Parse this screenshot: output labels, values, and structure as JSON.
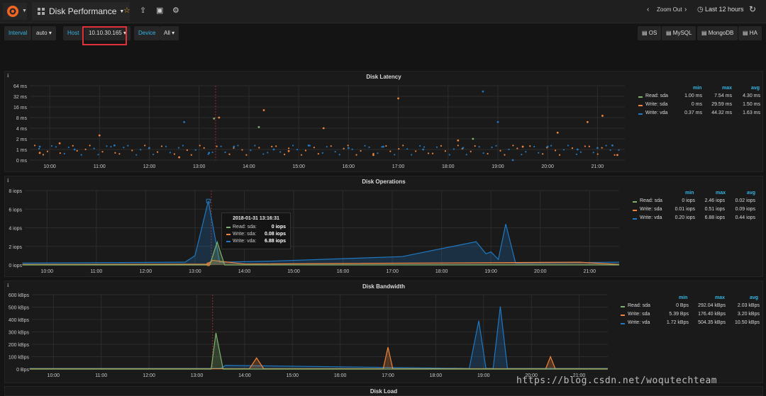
{
  "toolbar": {
    "dashboard_title": "Disk Performance",
    "zoom_out_label": "Zoom Out",
    "time_range_label": "Last 12 hours"
  },
  "variables": {
    "interval_label": "Interval",
    "interval_value": "auto",
    "host_label": "Host",
    "host_value": "10.10.30.165",
    "device_label": "Device",
    "device_value": "All"
  },
  "links": [
    "OS",
    "MySQL",
    "MongoDB",
    "HA"
  ],
  "panels": {
    "latency": {
      "title": "Disk Latency",
      "legend_headers": [
        "min",
        "max",
        "avg"
      ],
      "legend": [
        {
          "name": "Read: sda",
          "min": "1.00 ms",
          "max": "7.54 ms",
          "avg": "4.30 ms",
          "color": "#7eb26d"
        },
        {
          "name": "Write: sda",
          "min": "0 ms",
          "max": "29.59 ms",
          "avg": "1.50 ms",
          "color": "#ef843c"
        },
        {
          "name": "Write: vda",
          "min": "0.37 ms",
          "max": "44.32 ms",
          "avg": "1.63 ms",
          "color": "#1f78c1"
        }
      ]
    },
    "operations": {
      "title": "Disk Operations",
      "legend_headers": [
        "min",
        "max",
        "avg"
      ],
      "legend": [
        {
          "name": "Read: sda",
          "min": "0 iops",
          "max": "2.46 iops",
          "avg": "0.02 iops",
          "color": "#7eb26d"
        },
        {
          "name": "Write: sda",
          "min": "0.01 iops",
          "max": "0.51 iops",
          "avg": "0.09 iops",
          "color": "#ef843c"
        },
        {
          "name": "Write: vda",
          "min": "0.20 iops",
          "max": "6.88 iops",
          "avg": "0.44 iops",
          "color": "#1f78c1"
        }
      ],
      "tooltip": {
        "time": "2018-01-31 13:16:31",
        "rows": [
          {
            "name": "Read: sda:",
            "value": "0 iops",
            "color": "#7eb26d"
          },
          {
            "name": "Write: sda:",
            "value": "0.08 iops",
            "color": "#ef843c"
          },
          {
            "name": "Write: vda:",
            "value": "6.88 iops",
            "color": "#1f78c1"
          }
        ]
      }
    },
    "bandwidth": {
      "title": "Disk Bandwidth",
      "legend_headers": [
        "min",
        "max",
        "avg"
      ],
      "legend": [
        {
          "name": "Read: sda",
          "min": "0 Bps",
          "max": "292.04 kBps",
          "avg": "2.03 kBps",
          "color": "#7eb26d"
        },
        {
          "name": "Write: sda",
          "min": "5.39 Bps",
          "max": "176.40 kBps",
          "avg": "3.20 kBps",
          "color": "#ef843c"
        },
        {
          "name": "Write: vda",
          "min": "1.72 kBps",
          "max": "504.35 kBps",
          "avg": "10.50 kBps",
          "color": "#1f78c1"
        }
      ]
    },
    "load": {
      "title": "Disk Load"
    }
  },
  "watermark": "https://blog.csdn.net/woqutechteam",
  "chart_data": [
    {
      "type": "scatter",
      "title": "Disk Latency",
      "x_ticks": [
        "10:00",
        "11:00",
        "12:00",
        "13:00",
        "14:00",
        "15:00",
        "16:00",
        "17:00",
        "18:00",
        "19:00",
        "20:00",
        "21:00"
      ],
      "y_ticks": [
        "0 ms",
        "1 ms",
        "2 ms",
        "4 ms",
        "8 ms",
        "16 ms",
        "32 ms",
        "64 ms"
      ],
      "y_scale": "log2",
      "series": [
        {
          "name": "Read: sda",
          "x_hours": [
            13.3,
            14.2,
            18.5
          ],
          "y_ms": [
            7.5,
            4.3,
            2.0
          ]
        },
        {
          "name": "Write: sda",
          "x_hours": [
            9.8,
            10.2,
            11.0,
            12.6,
            13.4,
            14.3,
            14.8,
            15.5,
            16.5,
            17.0,
            18.2,
            19.5,
            20.2,
            20.8,
            21.1,
            21.4
          ],
          "y_ms": [
            0.8,
            1.5,
            2.5,
            0.6,
            8.0,
            13.0,
            0.9,
            4.0,
            0.7,
            28.0,
            1.8,
            1.2,
            3.0,
            6.0,
            9.0,
            0.7
          ]
        },
        {
          "name": "Write: vda",
          "x_hours": [
            9.8,
            10.5,
            11.3,
            12.0,
            12.7,
            13.2,
            13.7,
            14.5,
            15.2,
            16.0,
            16.7,
            17.5,
            18.3,
            18.7,
            19.0,
            19.3,
            20.0,
            20.6,
            21.0,
            21.3
          ],
          "y_ms": [
            1.2,
            1.0,
            1.3,
            1.1,
            6.0,
            0.8,
            1.2,
            1.0,
            1.3,
            1.1,
            1.2,
            1.0,
            1.1,
            44.0,
            6.0,
            0.5,
            1.2,
            1.0,
            1.1,
            1.3
          ]
        }
      ]
    },
    {
      "type": "area",
      "title": "Disk Operations",
      "x_ticks": [
        "10:00",
        "11:00",
        "12:00",
        "13:00",
        "14:00",
        "15:00",
        "16:00",
        "17:00",
        "18:00",
        "19:00",
        "20:00",
        "21:00"
      ],
      "y_ticks": [
        "0 iops",
        "2 iops",
        "4 iops",
        "6 iops",
        "8 iops"
      ],
      "ylim": [
        0,
        8
      ],
      "series": [
        {
          "name": "Read: sda",
          "x_hours": [
            9.5,
            13.3,
            13.45,
            13.6,
            21.6
          ],
          "values": [
            0,
            0,
            2.46,
            0,
            0
          ]
        },
        {
          "name": "Write: sda",
          "x_hours": [
            9.5,
            13.25,
            13.35,
            14.0,
            20.8,
            21.6
          ],
          "values": [
            0.05,
            0.08,
            0.5,
            0.1,
            0.3,
            0.05
          ]
        },
        {
          "name": "Write: vda",
          "x_hours": [
            9.5,
            12.8,
            13.0,
            13.27,
            13.5,
            14.5,
            17.2,
            18.7,
            18.9,
            19.0,
            19.15,
            19.3,
            19.5,
            21.6
          ],
          "values": [
            0.2,
            0.3,
            1.0,
            6.88,
            0.3,
            0.4,
            0.9,
            2.5,
            1.2,
            1.4,
            0.6,
            4.4,
            0.2,
            0.3
          ]
        }
      ]
    },
    {
      "type": "area",
      "title": "Disk Bandwidth",
      "x_ticks": [
        "10:00",
        "11:00",
        "12:00",
        "13:00",
        "14:00",
        "15:00",
        "16:00",
        "17:00",
        "18:00",
        "19:00",
        "20:00",
        "21:00"
      ],
      "y_ticks": [
        "0 Bps",
        "100 kBps",
        "200 kBps",
        "300 kBps",
        "400 kBps",
        "500 kBps",
        "600 kBps"
      ],
      "ylim": [
        0,
        600
      ],
      "series": [
        {
          "name": "Read: sda",
          "x_hours": [
            9.5,
            13.3,
            13.4,
            13.55,
            21.6
          ],
          "values": [
            0,
            0,
            292.04,
            0,
            0
          ]
        },
        {
          "name": "Write: sda",
          "x_hours": [
            9.5,
            14.1,
            14.25,
            14.4,
            16.9,
            17.0,
            17.1,
            20.3,
            20.4,
            20.5,
            21.6
          ],
          "values": [
            3,
            3,
            90,
            3,
            3,
            176.4,
            3,
            3,
            100,
            3,
            3
          ]
        },
        {
          "name": "Write: vda",
          "x_hours": [
            9.5,
            13.5,
            13.6,
            18.7,
            18.9,
            19.05,
            19.2,
            19.35,
            19.5,
            21.6
          ],
          "values": [
            5,
            5,
            30,
            5,
            390,
            5,
            5,
            504.35,
            5,
            5
          ]
        }
      ]
    }
  ]
}
